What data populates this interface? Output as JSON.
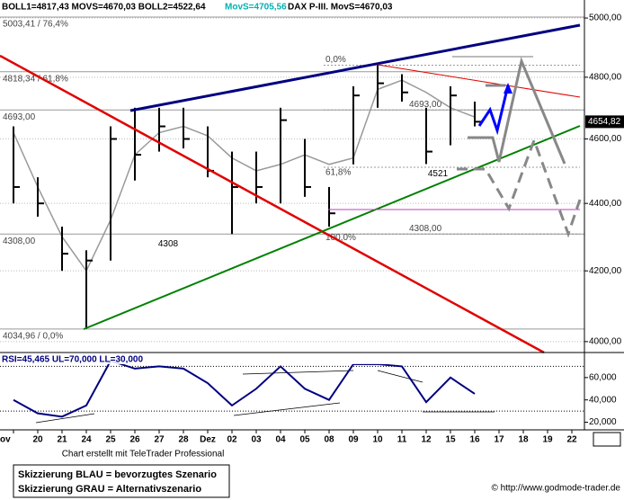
{
  "chart_data": [
    {
      "type": "ohlc",
      "header": [
        "BOLL1=4817,43 MOVS=4670,03 BOLL2=4522,64",
        "MovS=4705,56",
        "DAX P-III. MovS=4670,03"
      ],
      "categories": [
        "ov",
        "20",
        "21",
        "24",
        "25",
        "26",
        "27",
        "28",
        "Dez",
        "02",
        "03",
        "04",
        "05",
        "08",
        "09",
        "10",
        "11",
        "12",
        "15",
        "16",
        "17",
        "18",
        "19",
        "22"
      ],
      "high": [
        4640,
        4480,
        4330,
        4260,
        4640,
        4700,
        4700,
        4700,
        4640,
        4560,
        4560,
        4700,
        4600,
        4450,
        4770,
        4840,
        4810,
        4700,
        4770,
        4720,
        null,
        null,
        null,
        null
      ],
      "low": [
        4400,
        4360,
        4200,
        4034.96,
        4230,
        4470,
        4560,
        4570,
        4480,
        4308,
        4400,
        4400,
        4420,
        4330,
        4520,
        4700,
        4720,
        4521,
        4580,
        4640,
        null,
        null,
        null,
        null
      ],
      "close": [
        4450,
        4400,
        4250,
        4230,
        4600,
        4550,
        4640,
        4600,
        4500,
        4450,
        4450,
        4660,
        4450,
        4370,
        4740,
        4780,
        4750,
        4560,
        4740,
        4654.82,
        null,
        null,
        null,
        null
      ],
      "moving_average": [
        4620,
        4450,
        4300,
        4200,
        4350,
        4550,
        4620,
        4640,
        4610,
        4540,
        4500,
        4520,
        4550,
        4520,
        4540,
        4760,
        4790,
        4750,
        4700,
        4670,
        null,
        null,
        null,
        null
      ],
      "color": "#000000",
      "ma_color": "#999999",
      "log_scale": true,
      "ylim": [
        3970,
        5050
      ],
      "yticks": [
        {
          "value": 5000,
          "label": "5000,00"
        },
        {
          "value": 4800,
          "label": "4800,00"
        },
        {
          "value": 4600,
          "label": "4600,00"
        },
        {
          "value": 4400,
          "label": "4400,00"
        },
        {
          "value": 4200,
          "label": "4200,00"
        },
        {
          "value": 4000,
          "label": "4000,00"
        }
      ],
      "last_price": {
        "value": 4654.82,
        "label": "4654,82"
      },
      "levels_left": [
        {
          "value": 5003.41,
          "label": "5003,41 / 76,4%"
        },
        {
          "value": 4818.34,
          "label": "4818,34 / 61,8%"
        },
        {
          "value": 4693,
          "label": "4693,00"
        },
        {
          "value": 4308,
          "label": "4308,00"
        },
        {
          "value": 4034.96,
          "label": "4034,96 / 0,0%"
        }
      ],
      "levels_right": [
        {
          "value": 4840,
          "label": "0,0%"
        },
        {
          "value": 4693,
          "label": "4693,00"
        },
        {
          "value": 4511,
          "label": "61,8%"
        },
        {
          "value": 4308,
          "label": "4308,00"
        },
        {
          "value": 4308,
          "label": "100,0%"
        }
      ],
      "point_labels": [
        4308,
        4521
      ]
    },
    {
      "type": "line",
      "header": "RSI=45,465 UL=70,000 LL=30,000",
      "values": [
        40,
        28,
        25,
        35,
        75,
        68,
        70,
        68,
        55,
        35,
        50,
        70,
        50,
        40,
        72,
        72,
        70,
        38,
        60,
        45.465,
        null,
        null,
        null,
        null
      ],
      "color": "#000080",
      "ylim": [
        14,
        80
      ],
      "yticks": [
        {
          "value": 60,
          "label": "60,000"
        },
        {
          "value": 40,
          "label": "40,000"
        },
        {
          "value": 20,
          "label": "20,000"
        }
      ],
      "guides": [
        70,
        30
      ]
    }
  ],
  "footer": {
    "credit": "Chart erstellt mit TeleTrader Professional",
    "legend_lines": [
      "Skizzierung BLAU = bevorzugtes Szenario",
      "Skizzierung GRAU = Alternativszenario"
    ],
    "copyright": "© http://www.godmode-trader.de"
  }
}
